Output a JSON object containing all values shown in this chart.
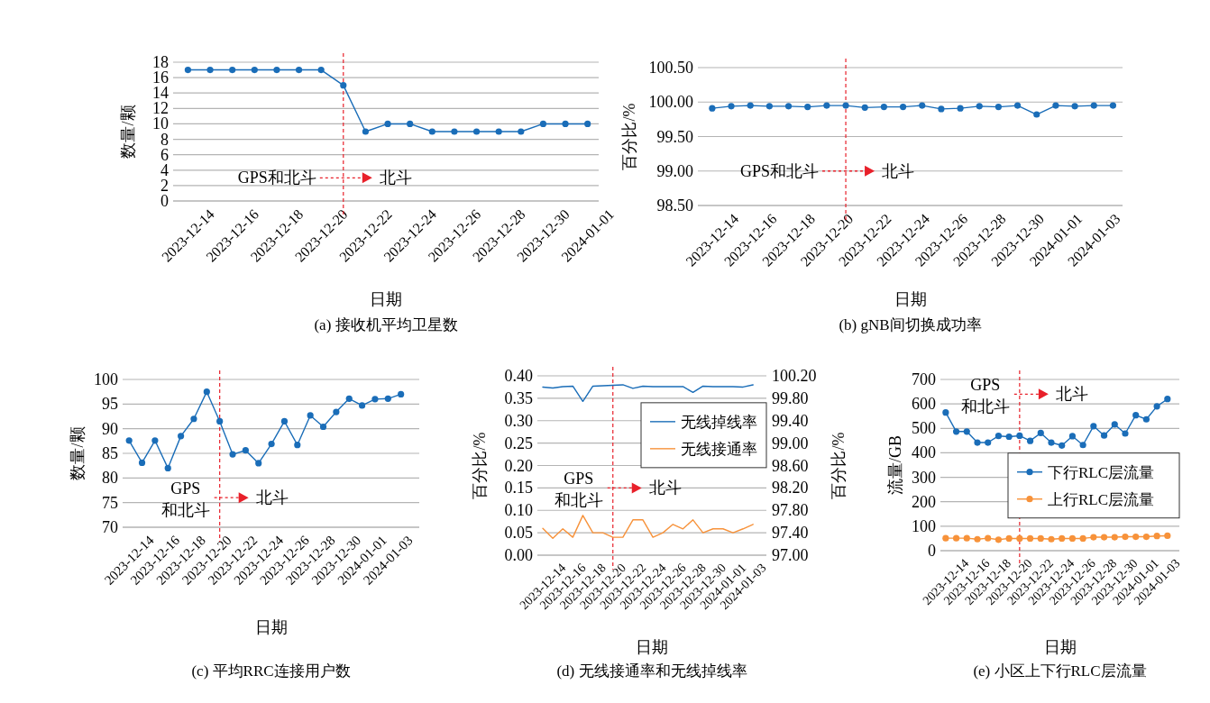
{
  "chart_data": [
    {
      "type": "line",
      "title": "(a) 接收机平均卫星数",
      "xlabel": "日期",
      "ylabel": "数量/颗",
      "marker": "circle",
      "grid": "y",
      "legend": false,
      "x": [
        "2023-12-14",
        "2023-12-15",
        "2023-12-16",
        "2023-12-17",
        "2023-12-18",
        "2023-12-19",
        "2023-12-20",
        "2023-12-21",
        "2023-12-22",
        "2023-12-23",
        "2023-12-24",
        "2023-12-25",
        "2023-12-26",
        "2023-12-27",
        "2023-12-28",
        "2023-12-29",
        "2023-12-30",
        "2023-12-31",
        "2024-01-01"
      ],
      "series": [
        {
          "color": "#1a6db8",
          "values": [
            17,
            17,
            17,
            17,
            17,
            17,
            17,
            15,
            9,
            10,
            10,
            9,
            9,
            9,
            9,
            9,
            10,
            10,
            10
          ]
        }
      ],
      "xlim": [
        "2023-12-13T08:00",
        "2024-01-01T12:00"
      ],
      "xticks": [
        "2023-12-14",
        "2023-12-16",
        "2023-12-18",
        "2023-12-20",
        "2023-12-22",
        "2023-12-24",
        "2023-12-26",
        "2023-12-28",
        "2023-12-30",
        "2024-01-01"
      ],
      "ylim": [
        0,
        18
      ],
      "yticks": [
        0,
        2,
        4,
        6,
        8,
        10,
        12,
        14,
        16,
        18
      ],
      "ref_lines": [
        {
          "axis": "x",
          "value": "2023-12-21",
          "color": "#e8202a",
          "line_style": "dashed"
        }
      ],
      "annotations": [
        "GPS和北斗",
        "北斗"
      ]
    },
    {
      "type": "line",
      "title": "(b) gNB间切换成功率",
      "xlabel": "日期",
      "ylabel": "百分比/%",
      "marker": "circle",
      "grid": "y",
      "legend": false,
      "x": [
        "2023-12-14",
        "2023-12-15",
        "2023-12-16",
        "2023-12-17",
        "2023-12-18",
        "2023-12-19",
        "2023-12-20",
        "2023-12-21",
        "2023-12-22",
        "2023-12-23",
        "2023-12-24",
        "2023-12-25",
        "2023-12-26",
        "2023-12-27",
        "2023-12-28",
        "2023-12-29",
        "2023-12-30",
        "2023-12-31",
        "2024-01-01",
        "2024-01-02",
        "2024-01-03",
        "2024-01-04"
      ],
      "series": [
        {
          "color": "#1a6db8",
          "values": [
            99.91,
            99.94,
            99.95,
            99.94,
            99.94,
            99.93,
            99.95,
            99.95,
            99.92,
            99.93,
            99.93,
            99.95,
            99.9,
            99.91,
            99.94,
            99.93,
            99.95,
            99.82,
            99.95,
            99.94,
            99.95,
            99.95
          ]
        }
      ],
      "xlim": [
        "2023-12-13T06:00",
        "2024-01-04T12:00"
      ],
      "xticks": [
        "2023-12-14",
        "2023-12-16",
        "2023-12-18",
        "2023-12-20",
        "2023-12-22",
        "2023-12-24",
        "2023-12-26",
        "2023-12-28",
        "2023-12-30",
        "2024-01-01",
        "2024-01-03"
      ],
      "ylim": [
        98.5,
        100.5
      ],
      "yticks": [
        {
          "value": 98.5,
          "label": "98.50"
        },
        {
          "value": 99,
          "label": "99.00"
        },
        {
          "value": 99.5,
          "label": "99.50"
        },
        {
          "value": 100,
          "label": "100.00"
        },
        {
          "value": 100.5,
          "label": "100.50"
        }
      ],
      "ref_lines": [
        {
          "axis": "x",
          "value": "2023-12-21",
          "color": "#e8202a",
          "line_style": "dashed"
        }
      ],
      "annotations": [
        "GPS和北斗",
        "北斗"
      ]
    },
    {
      "type": "line",
      "title": "(c) 平均RRC连接用户数",
      "xlabel": "日期",
      "ylabel": "数量/颗",
      "marker": "circle",
      "grid": "y",
      "legend": false,
      "x": [
        "2023-12-14",
        "2023-12-15",
        "2023-12-16",
        "2023-12-17",
        "2023-12-18",
        "2023-12-19",
        "2023-12-20",
        "2023-12-21",
        "2023-12-22",
        "2023-12-23",
        "2023-12-24",
        "2023-12-25",
        "2023-12-26",
        "2023-12-27",
        "2023-12-28",
        "2023-12-29",
        "2023-12-30",
        "2023-12-31",
        "2024-01-01",
        "2024-01-02",
        "2024-01-03",
        "2024-01-04"
      ],
      "series": [
        {
          "color": "#1a6db8",
          "values": [
            87.6,
            83.1,
            87.6,
            82.0,
            88.5,
            92.0,
            97.5,
            91.5,
            84.8,
            85.6,
            83.0,
            86.9,
            91.5,
            86.7,
            92.7,
            90.4,
            93.4,
            96.1,
            94.7,
            96.0,
            96.1,
            97.0
          ]
        }
      ],
      "xlim": [
        "2023-12-13T12:00",
        "2024-01-05T10:00"
      ],
      "xticks": [
        "2023-12-14",
        "2023-12-16",
        "2023-12-18",
        "2023-12-20",
        "2023-12-22",
        "2023-12-24",
        "2023-12-26",
        "2023-12-28",
        "2023-12-30",
        "2024-01-01",
        "2024-01-03"
      ],
      "ylim": [
        70,
        100
      ],
      "yticks": [
        70,
        75,
        80,
        85,
        90,
        95,
        100
      ],
      "ref_lines": [
        {
          "axis": "x",
          "value": "2023-12-21",
          "color": "#e8202a",
          "line_style": "dashed"
        }
      ],
      "annotations": [
        "GPS和北斗",
        "北斗"
      ]
    },
    {
      "type": "line",
      "title": "(d) 无线接通率和无线掉线率",
      "xlabel": "日期",
      "ylabel": "百分比/%",
      "y2label": "百分比/%",
      "marker": "none",
      "grid": "y",
      "legend": "top right",
      "x": [
        "2023-12-14",
        "2023-12-15",
        "2023-12-16",
        "2023-12-17",
        "2023-12-18",
        "2023-12-19",
        "2023-12-20",
        "2023-12-21",
        "2023-12-22",
        "2023-12-23",
        "2023-12-24",
        "2023-12-25",
        "2023-12-26",
        "2023-12-27",
        "2023-12-28",
        "2023-12-29",
        "2023-12-30",
        "2023-12-31",
        "2024-01-01",
        "2024-01-02",
        "2024-01-03",
        "2024-01-04"
      ],
      "series": [
        {
          "name": "无线掉线率",
          "color": "#1a6db8",
          "values": [
            0.375,
            0.373,
            0.376,
            0.377,
            0.343,
            0.377,
            0.378,
            0.379,
            0.38,
            0.372,
            0.377,
            0.376,
            0.376,
            0.376,
            0.376,
            0.363,
            0.377,
            0.376,
            0.376,
            0.376,
            0.375,
            0.38
          ]
        },
        {
          "name": "无线接通率",
          "color": "#f7923a",
          "axis": "y2",
          "values": [
            97.48,
            97.3,
            97.47,
            97.32,
            97.71,
            97.4,
            97.4,
            97.32,
            97.32,
            97.63,
            97.63,
            97.32,
            97.4,
            97.55,
            97.47,
            97.63,
            97.4,
            97.47,
            97.47,
            97.4,
            97.47,
            97.55
          ]
        }
      ],
      "xlim": [
        "2023-12-13T11:00",
        "2024-01-05T08:00"
      ],
      "xticks": [
        "2023-12-14",
        "2023-12-16",
        "2023-12-18",
        "2023-12-20",
        "2023-12-22",
        "2023-12-24",
        "2023-12-26",
        "2023-12-28",
        "2023-12-30",
        "2024-01-01",
        "2024-01-03"
      ],
      "ylim": [
        0,
        0.4
      ],
      "yticks": [
        {
          "value": 0,
          "label": "0.00"
        },
        {
          "value": 0.05,
          "label": "0.05"
        },
        {
          "value": 0.1,
          "label": "0.10"
        },
        {
          "value": 0.15,
          "label": "0.15"
        },
        {
          "value": 0.2,
          "label": "0.20"
        },
        {
          "value": 0.25,
          "label": "0.25"
        },
        {
          "value": 0.3,
          "label": "0.30"
        },
        {
          "value": 0.35,
          "label": "0.35"
        },
        {
          "value": 0.4,
          "label": "0.40"
        }
      ],
      "y2lim": [
        97,
        100.2
      ],
      "y2ticks": [
        {
          "value": 97,
          "label": "97.00"
        },
        {
          "value": 97.4,
          "label": "97.40"
        },
        {
          "value": 97.8,
          "label": "97.80"
        },
        {
          "value": 98.2,
          "label": "98.20"
        },
        {
          "value": 98.6,
          "label": "98.60"
        },
        {
          "value": 99,
          "label": "99.00"
        },
        {
          "value": 99.4,
          "label": "99.40"
        },
        {
          "value": 99.8,
          "label": "99.80"
        },
        {
          "value": 100.2,
          "label": "100.20"
        }
      ],
      "ref_lines": [
        {
          "axis": "x",
          "value": "2023-12-21",
          "color": "#e8202a",
          "line_style": "dashed"
        }
      ],
      "annotations": [
        "GPS和北斗",
        "北斗"
      ]
    },
    {
      "type": "line",
      "title": "(e) 小区上下行RLC层流量",
      "xlabel": "日期",
      "ylabel": "流量/GB",
      "marker": "circle",
      "grid": "y",
      "legend": "bottom right",
      "x": [
        "2023-12-14",
        "2023-12-15",
        "2023-12-16",
        "2023-12-17",
        "2023-12-18",
        "2023-12-19",
        "2023-12-20",
        "2023-12-21",
        "2023-12-22",
        "2023-12-23",
        "2023-12-24",
        "2023-12-25",
        "2023-12-26",
        "2023-12-27",
        "2023-12-28",
        "2023-12-29",
        "2023-12-30",
        "2023-12-31",
        "2024-01-01",
        "2024-01-02",
        "2024-01-03",
        "2024-01-04"
      ],
      "series": [
        {
          "name": "下行RLC层流量",
          "color": "#1a6db8",
          "values": [
            565,
            487,
            487,
            442,
            442,
            469,
            466,
            470,
            449,
            481,
            442,
            430,
            468,
            432,
            509,
            471,
            516,
            479,
            554,
            537,
            590,
            620
          ]
        },
        {
          "name": "上行RLC层流量",
          "color": "#f7923a",
          "values": [
            51,
            51,
            51,
            47,
            51,
            45,
            50,
            50,
            50,
            50,
            47,
            50,
            50,
            50,
            55,
            55,
            55,
            57,
            57,
            57,
            60,
            61
          ]
        }
      ],
      "xlim": [
        "2023-12-13T12:00",
        "2024-01-05T03:00"
      ],
      "xticks": [
        "2023-12-14",
        "2023-12-16",
        "2023-12-18",
        "2023-12-20",
        "2023-12-22",
        "2023-12-24",
        "2023-12-26",
        "2023-12-28",
        "2023-12-30",
        "2024-01-01",
        "2024-01-03"
      ],
      "ylim": [
        0,
        700
      ],
      "yticks": [
        0,
        100,
        200,
        300,
        400,
        500,
        600,
        700
      ],
      "ref_lines": [
        {
          "axis": "x",
          "value": "2023-12-21",
          "color": "#e8202a",
          "line_style": "dashed"
        }
      ],
      "annotations": [
        "GPS和北斗",
        "北斗"
      ]
    }
  ]
}
